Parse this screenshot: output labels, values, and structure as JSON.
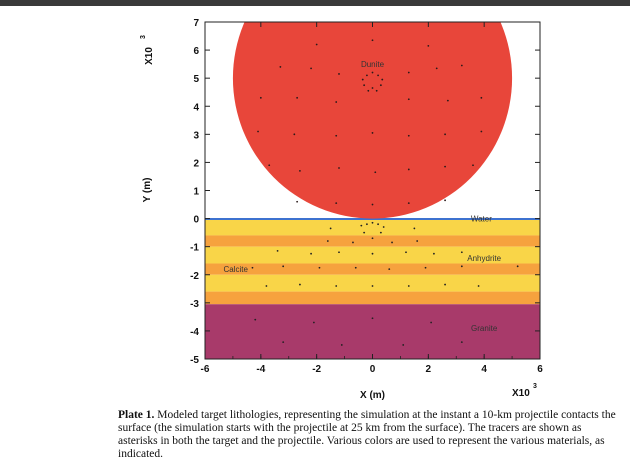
{
  "chart_data": {
    "type": "cross-section",
    "xlabel": "X (m)",
    "ylabel": "Y (m)",
    "x_scale_label": "X10",
    "x_scale_exp": "3",
    "y_scale_label": "X10",
    "y_scale_exp": "3",
    "xlim": [
      -6,
      6
    ],
    "ylim": [
      -5,
      7
    ],
    "x_ticks": [
      "-6",
      "-4",
      "-2",
      "0",
      "2",
      "4",
      "6"
    ],
    "y_ticks": [
      "7",
      "6",
      "5",
      "4",
      "3",
      "2",
      "1",
      "0",
      "-1",
      "-2",
      "-3",
      "-4",
      "-5"
    ],
    "layers": [
      {
        "name": "Water",
        "y_top": 0.02,
        "y_bottom": -0.05,
        "color": "#3a6fd0"
      },
      {
        "name": "Anhydrite/Calcite stripe",
        "y_top": -0.05,
        "y_bottom": -0.6,
        "color": "#f9d548"
      },
      {
        "name": "stripe",
        "y_top": -0.6,
        "y_bottom": -1.0,
        "color": "#f6a23e"
      },
      {
        "name": "stripe",
        "y_top": -1.0,
        "y_bottom": -1.6,
        "color": "#f9d548"
      },
      {
        "name": "stripe",
        "y_top": -1.6,
        "y_bottom": -2.0,
        "color": "#f6a23e"
      },
      {
        "name": "stripe",
        "y_top": -2.0,
        "y_bottom": -2.6,
        "color": "#f9d548"
      },
      {
        "name": "stripe",
        "y_top": -2.6,
        "y_bottom": -3.05,
        "color": "#f6a23e"
      },
      {
        "name": "Granite",
        "y_top": -3.05,
        "y_bottom": -5,
        "color": "#a83a6a"
      }
    ],
    "projectile": {
      "name": "Dunite",
      "center_x": 0,
      "center_y": 5.0,
      "radius": 5.0,
      "color": "#e8463a"
    },
    "labels": [
      {
        "text": "Dunite",
        "x": 0,
        "y": 5.5
      },
      {
        "text": "Water",
        "x": 3.9,
        "y": 0.0
      },
      {
        "text": "Anhydrite",
        "x": 4.0,
        "y": -1.4
      },
      {
        "text": "Calcite",
        "x": -4.9,
        "y": -1.8
      },
      {
        "text": "Granite",
        "x": 4.0,
        "y": -3.9
      }
    ],
    "tracers_dunite": [
      [
        0,
        5.2
      ],
      [
        -0.2,
        5.1
      ],
      [
        0.2,
        5.1
      ],
      [
        -0.35,
        4.95
      ],
      [
        0.35,
        4.95
      ],
      [
        -0.3,
        4.75
      ],
      [
        0.3,
        4.75
      ],
      [
        0,
        4.65
      ],
      [
        -0.15,
        4.55
      ],
      [
        0.15,
        4.55
      ],
      [
        -2,
        6.2
      ],
      [
        0,
        6.35
      ],
      [
        2,
        6.15
      ],
      [
        -3.3,
        5.4
      ],
      [
        -2.2,
        5.35
      ],
      [
        -1.2,
        5.15
      ],
      [
        1.3,
        5.2
      ],
      [
        2.3,
        5.35
      ],
      [
        3.2,
        5.45
      ],
      [
        -4,
        4.3
      ],
      [
        -2.7,
        4.3
      ],
      [
        -1.3,
        4.15
      ],
      [
        1.3,
        4.25
      ],
      [
        2.7,
        4.2
      ],
      [
        3.9,
        4.3
      ],
      [
        -4.1,
        3.1
      ],
      [
        -2.8,
        3.0
      ],
      [
        -1.3,
        2.95
      ],
      [
        0,
        3.05
      ],
      [
        1.3,
        2.95
      ],
      [
        2.6,
        3.0
      ],
      [
        3.9,
        3.1
      ],
      [
        -3.7,
        1.9
      ],
      [
        -2.6,
        1.7
      ],
      [
        -1.2,
        1.8
      ],
      [
        0.1,
        1.65
      ],
      [
        1.3,
        1.75
      ],
      [
        2.6,
        1.85
      ],
      [
        3.6,
        1.9
      ],
      [
        -2.7,
        0.6
      ],
      [
        -1.3,
        0.55
      ],
      [
        0,
        0.5
      ],
      [
        1.3,
        0.55
      ],
      [
        2.6,
        0.65
      ]
    ],
    "tracers_target": [
      [
        -0.4,
        -0.25
      ],
      [
        -0.2,
        -0.2
      ],
      [
        0,
        -0.15
      ],
      [
        0.2,
        -0.2
      ],
      [
        0.4,
        -0.3
      ],
      [
        -0.3,
        -0.5
      ],
      [
        0.3,
        -0.5
      ],
      [
        0,
        -0.7
      ],
      [
        -1.5,
        -0.35
      ],
      [
        1.5,
        -0.35
      ],
      [
        -1.6,
        -0.8
      ],
      [
        -0.7,
        -0.85
      ],
      [
        0.7,
        -0.85
      ],
      [
        1.6,
        -0.8
      ],
      [
        -3.4,
        -1.15
      ],
      [
        -2.2,
        -1.25
      ],
      [
        -1.2,
        -1.2
      ],
      [
        0,
        -1.25
      ],
      [
        1.2,
        -1.2
      ],
      [
        2.2,
        -1.25
      ],
      [
        3.2,
        -1.2
      ],
      [
        -4.3,
        -1.75
      ],
      [
        -3.2,
        -1.7
      ],
      [
        -1.9,
        -1.75
      ],
      [
        -0.6,
        -1.75
      ],
      [
        0.6,
        -1.8
      ],
      [
        1.9,
        -1.75
      ],
      [
        3.2,
        -1.7
      ],
      [
        5.2,
        -1.7
      ],
      [
        -3.8,
        -2.4
      ],
      [
        -2.6,
        -2.35
      ],
      [
        -1.3,
        -2.4
      ],
      [
        0,
        -2.4
      ],
      [
        1.3,
        -2.4
      ],
      [
        2.6,
        -2.35
      ],
      [
        3.8,
        -2.4
      ],
      [
        -4.2,
        -3.6
      ],
      [
        -2.1,
        -3.7
      ],
      [
        0,
        -3.55
      ],
      [
        2.1,
        -3.7
      ],
      [
        -3.2,
        -4.4
      ],
      [
        -1.1,
        -4.5
      ],
      [
        1.1,
        -4.5
      ],
      [
        3.2,
        -4.4
      ]
    ]
  },
  "caption": {
    "plate": "Plate 1.",
    "text": "Modeled target lithologies, representing the simulation at the instant a 10-km projectile contacts the surface (the simulation starts with the projectile at 25 km from the surface). The tracers are shown as asterisks in both the target and the projectile. Various colors are used to represent the various materials, as indicated."
  }
}
